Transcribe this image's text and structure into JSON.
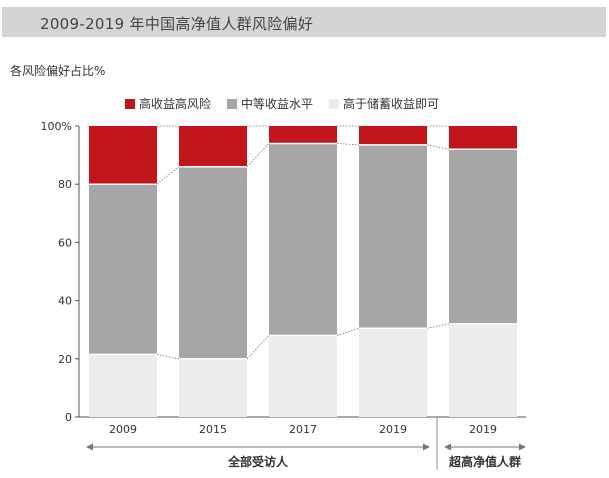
{
  "header": {
    "title": "2009-2019 年中国高净值人群风险偏好"
  },
  "chart_data": {
    "type": "bar",
    "stacked": true,
    "ylabel": "各风险偏好占比%",
    "ylim": [
      0,
      100
    ],
    "yticks": [
      "0",
      "20",
      "40",
      "60",
      "80",
      "100%"
    ],
    "categories": [
      "2009",
      "2015",
      "2017",
      "2019",
      "2019"
    ],
    "series": [
      {
        "name": "高于储蓄收益即可",
        "color": "#ececec",
        "values": [
          21.5,
          20,
          28,
          30.5,
          32
        ]
      },
      {
        "name": "中等收益水平",
        "color": "#a6a6a6",
        "values": [
          58.5,
          66,
          66,
          63,
          60
        ]
      },
      {
        "name": "高收益高风险",
        "color": "#c3161c",
        "values": [
          20,
          14,
          6,
          6.5,
          8
        ]
      }
    ],
    "legend_order": [
      2,
      1,
      0
    ],
    "legend_position": "top-left",
    "groups": [
      {
        "label": "全部受访人",
        "from": 0,
        "to": 3
      },
      {
        "label": "超高净值人群",
        "from": 4,
        "to": 4
      }
    ]
  }
}
